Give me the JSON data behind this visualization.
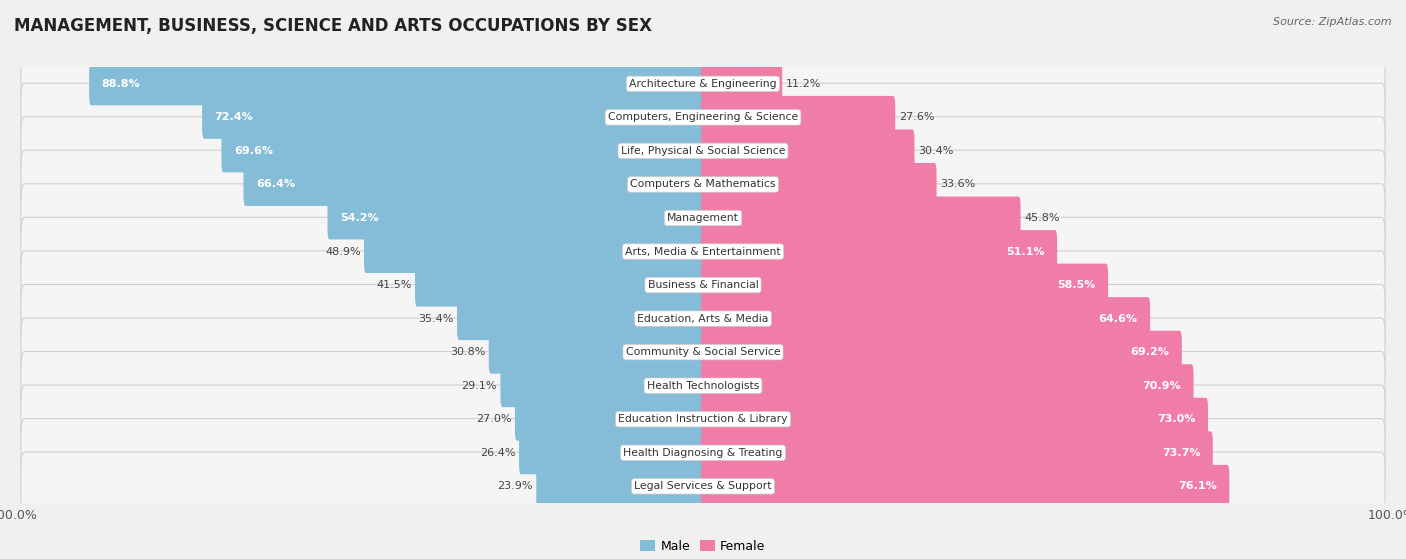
{
  "title": "MANAGEMENT, BUSINESS, SCIENCE AND ARTS OCCUPATIONS BY SEX",
  "source": "Source: ZipAtlas.com",
  "categories": [
    "Architecture & Engineering",
    "Computers, Engineering & Science",
    "Life, Physical & Social Science",
    "Computers & Mathematics",
    "Management",
    "Arts, Media & Entertainment",
    "Business & Financial",
    "Education, Arts & Media",
    "Community & Social Service",
    "Health Technologists",
    "Education Instruction & Library",
    "Health Diagnosing & Treating",
    "Legal Services & Support"
  ],
  "male_pct": [
    88.8,
    72.4,
    69.6,
    66.4,
    54.2,
    48.9,
    41.5,
    35.4,
    30.8,
    29.1,
    27.0,
    26.4,
    23.9
  ],
  "female_pct": [
    11.2,
    27.6,
    30.4,
    33.6,
    45.8,
    51.1,
    58.5,
    64.6,
    69.2,
    70.9,
    73.0,
    73.7,
    76.1
  ],
  "male_color": "#85bcd8",
  "female_color": "#f07ca8",
  "bg_color": "#f0f0f0",
  "row_light_color": "#f8f8f8",
  "row_dark_color": "#e8e8e8",
  "title_fontsize": 12,
  "pct_fontsize": 8,
  "cat_fontsize": 7.8,
  "source_fontsize": 8,
  "legend_fontsize": 9
}
